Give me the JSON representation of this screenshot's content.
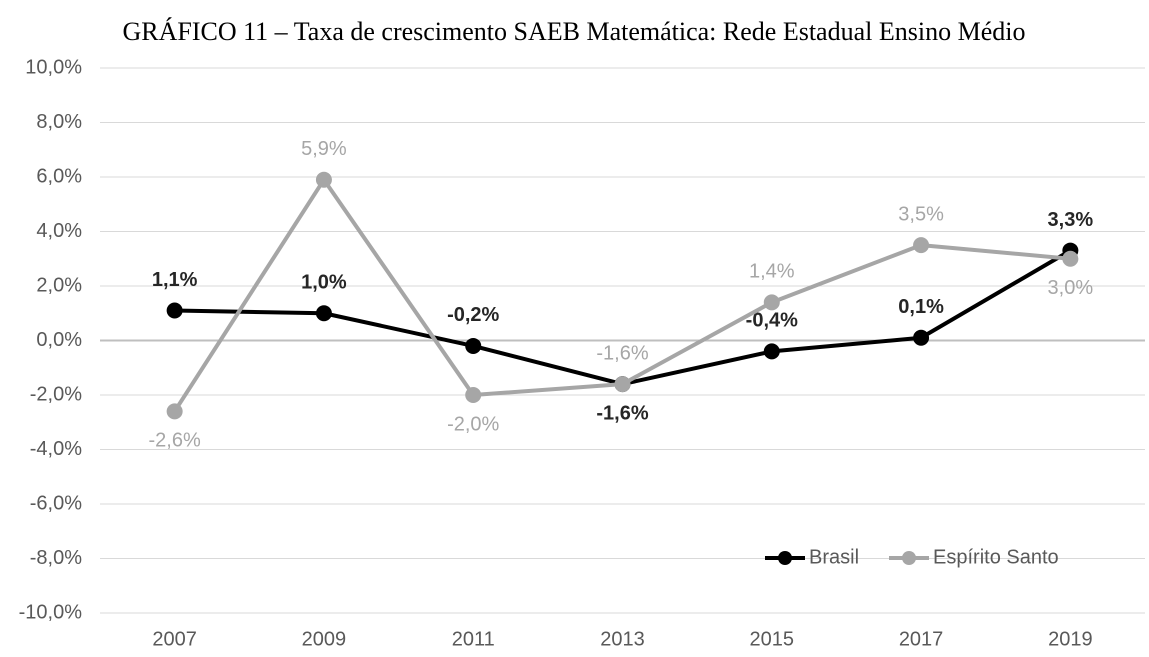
{
  "chart_data": {
    "type": "line",
    "title": "GRÁFICO 11 – Taxa de crescimento SAEB Matemática: Rede Estadual Ensino Médio",
    "categories": [
      "2007",
      "2009",
      "2011",
      "2013",
      "2015",
      "2017",
      "2019"
    ],
    "series": [
      {
        "name": "Brasil",
        "color": "#000000",
        "label_color": "#262626",
        "values": [
          1.1,
          1.0,
          -0.2,
          -1.6,
          -0.4,
          0.1,
          3.3
        ],
        "value_labels": [
          "1,1%",
          "1,0%",
          "-0,2%",
          "-1,6%",
          "-0,4%",
          "0,1%",
          "3,3%"
        ]
      },
      {
        "name": "Espírito Santo",
        "color": "#a6a6a6",
        "label_color": "#a6a6a6",
        "values": [
          -2.6,
          5.9,
          -2.0,
          -1.6,
          1.4,
          3.5,
          3.0
        ],
        "value_labels": [
          "-2,6%",
          "5,9%",
          "-2,0%",
          "-1,6%",
          "1,4%",
          "3,5%",
          "3,0%"
        ]
      }
    ],
    "ylim": [
      -10,
      10
    ],
    "yticks": [
      {
        "value": -10,
        "label": "-10,0%"
      },
      {
        "value": -8,
        "label": "-8,0%"
      },
      {
        "value": -6,
        "label": "-6,0%"
      },
      {
        "value": -4,
        "label": "-4,0%"
      },
      {
        "value": -2,
        "label": "-2,0%"
      },
      {
        "value": 0,
        "label": "0,0%"
      },
      {
        "value": 2,
        "label": "2,0%"
      },
      {
        "value": 4,
        "label": "4,0%"
      },
      {
        "value": 6,
        "label": "6,0%"
      },
      {
        "value": 8,
        "label": "8,0%"
      },
      {
        "value": 10,
        "label": "10,0%"
      }
    ],
    "grid": true,
    "legend": "lower right"
  }
}
